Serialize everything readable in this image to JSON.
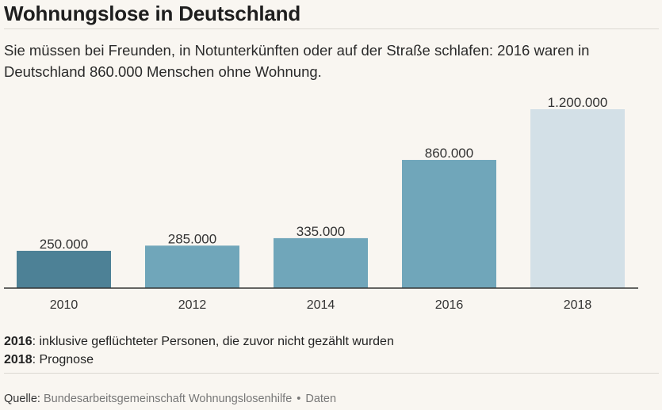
{
  "header": {
    "title": "Wohnungslose in Deutschland",
    "subtitle": "Sie müssen bei Freunden, in Notunterkünften oder auf der Straße schlafen: 2016 waren in Deutschland 860.000 Menschen ohne Wohnung."
  },
  "chart_data": {
    "type": "bar",
    "title": "Wohnungslose in Deutschland",
    "xlabel": "",
    "ylabel": "",
    "categories": [
      "2010",
      "2012",
      "2014",
      "2016",
      "2018"
    ],
    "values": [
      250000,
      285000,
      335000,
      860000,
      1200000
    ],
    "value_labels": [
      "250.000",
      "285.000",
      "335.000",
      "860.000",
      "1.200.000"
    ],
    "bar_colors": [
      "#4d8196",
      "#70a6ba",
      "#70a6ba",
      "#70a6ba",
      "#d3e0e7"
    ],
    "ylim": [
      0,
      1200000
    ],
    "grid": false,
    "legend": "none"
  },
  "notes": [
    {
      "key": "2016",
      "text": ": inklusive geflüchteter Personen, die zuvor nicht gezählt wurden"
    },
    {
      "key": "2018",
      "text": ": Prognose"
    }
  ],
  "source": {
    "label": "Quelle:",
    "name": "Bundesarbeitsgemeinschaft Wohnungslosenhilfe",
    "separator": "•",
    "link": "Daten"
  }
}
